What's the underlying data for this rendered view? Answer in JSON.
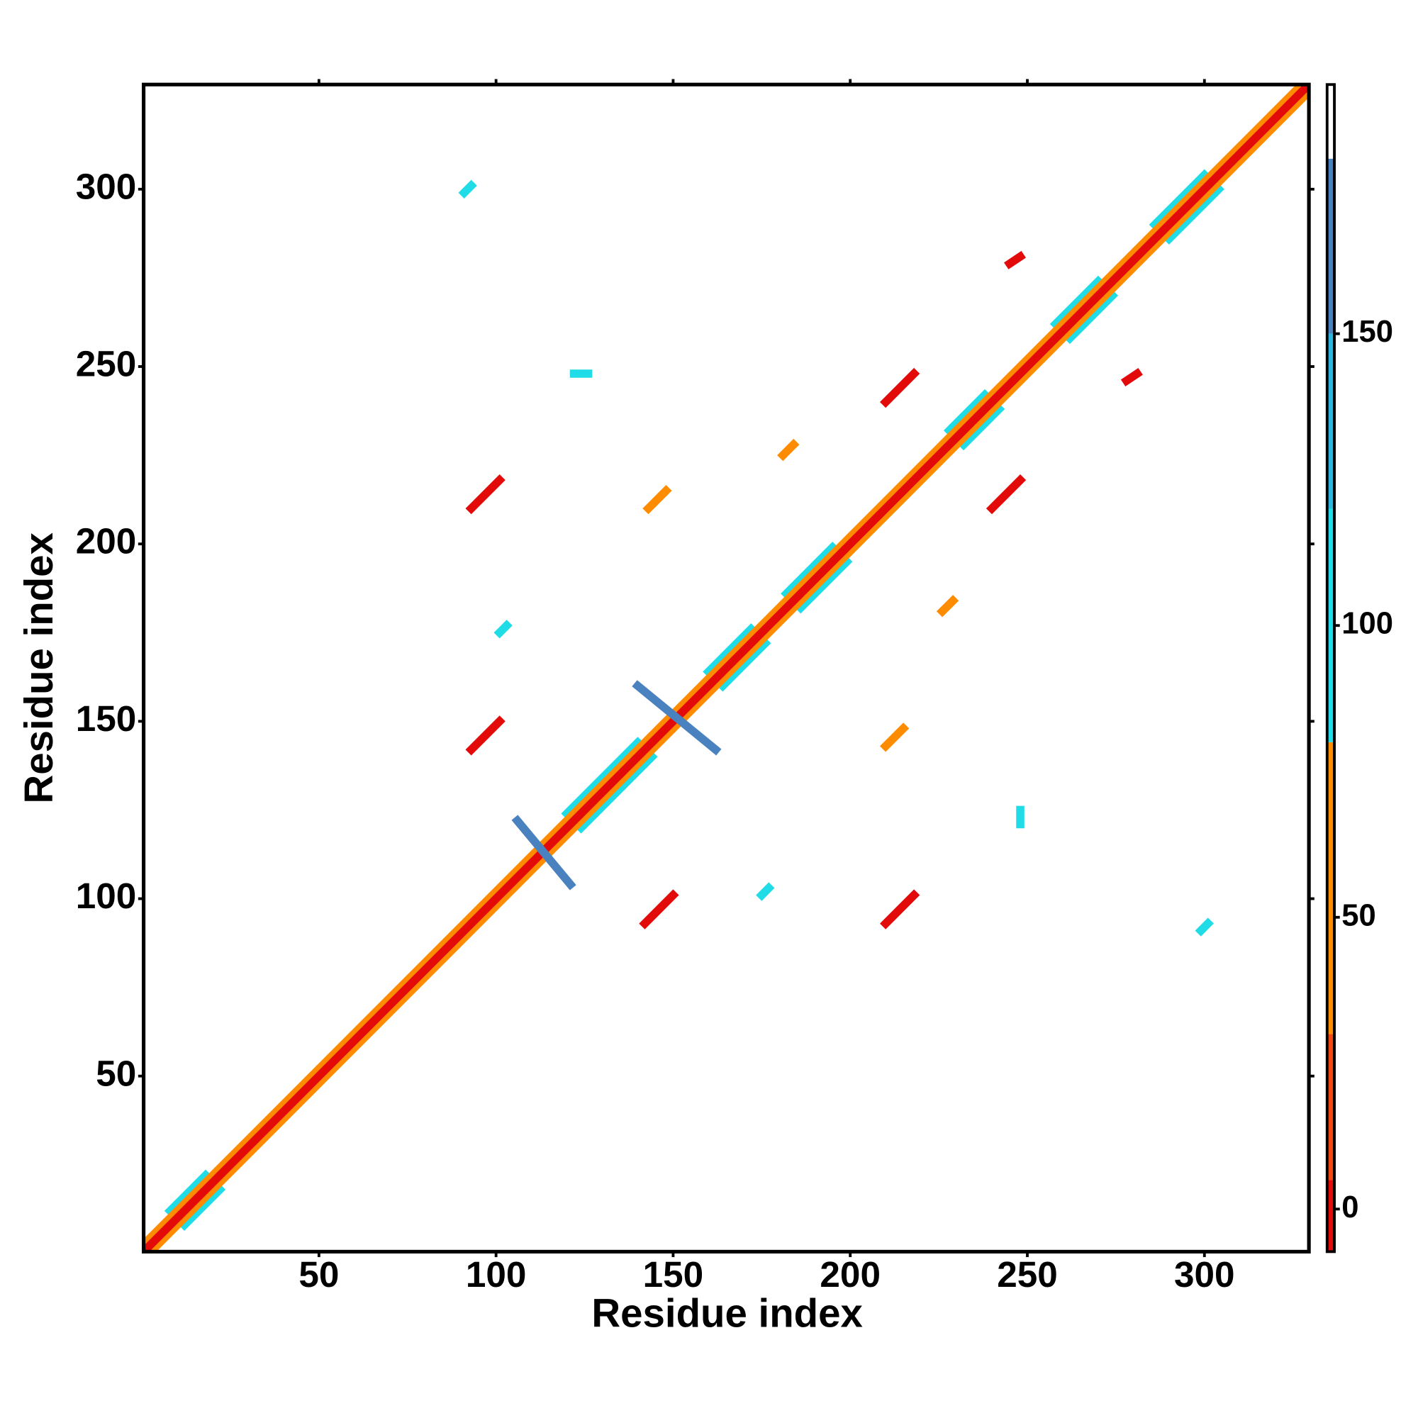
{
  "chart_data": {
    "type": "heatmap",
    "xlabel": "Residue index",
    "ylabel": "Residue index",
    "xlim": [
      0.5,
      329.5
    ],
    "ylim": [
      0.5,
      329.5
    ],
    "xticks": [
      50,
      100,
      150,
      200,
      250,
      300
    ],
    "yticks": [
      50,
      100,
      150,
      200,
      250,
      300
    ],
    "colorbar": {
      "lim": [
        -7.3,
        192.7
      ],
      "ticks": [
        0,
        50,
        100,
        150
      ],
      "bands": [
        {
          "from": -7.3,
          "to": 5,
          "color": "#e30a0a"
        },
        {
          "from": 5,
          "to": 30,
          "color": "#f2470f"
        },
        {
          "from": 30,
          "to": 80,
          "color": "#ff8c00"
        },
        {
          "from": 80,
          "to": 120,
          "color": "#1fdce6"
        },
        {
          "from": 120,
          "to": 150,
          "color": "#2bb6dc"
        },
        {
          "from": 150,
          "to": 180,
          "color": "#4a82c0"
        },
        {
          "from": 180,
          "to": 192.7,
          "color": "#ffffff"
        }
      ]
    },
    "contacts": [
      {
        "x": [
          8,
          18
        ],
        "y": [
          12,
          22
        ],
        "value": 100
      },
      {
        "x": [
          12,
          22
        ],
        "y": [
          8,
          18
        ],
        "value": 100
      },
      {
        "x": [
          120,
          140
        ],
        "y": [
          124,
          144
        ],
        "value": 100
      },
      {
        "x": [
          124,
          144
        ],
        "y": [
          120,
          140
        ],
        "value": 100
      },
      {
        "x": [
          160,
          172
        ],
        "y": [
          164,
          176
        ],
        "value": 100
      },
      {
        "x": [
          164,
          176
        ],
        "y": [
          160,
          172
        ],
        "value": 100
      },
      {
        "x": [
          182,
          195
        ],
        "y": [
          186,
          199
        ],
        "value": 100
      },
      {
        "x": [
          186,
          199
        ],
        "y": [
          182,
          195
        ],
        "value": 100
      },
      {
        "x": [
          228,
          238
        ],
        "y": [
          232,
          242
        ],
        "value": 100
      },
      {
        "x": [
          232,
          242
        ],
        "y": [
          228,
          238
        ],
        "value": 100
      },
      {
        "x": [
          258,
          270
        ],
        "y": [
          262,
          274
        ],
        "value": 100
      },
      {
        "x": [
          262,
          274
        ],
        "y": [
          258,
          270
        ],
        "value": 100
      },
      {
        "x": [
          286,
          300
        ],
        "y": [
          290,
          304
        ],
        "value": 100
      },
      {
        "x": [
          290,
          304
        ],
        "y": [
          286,
          300
        ],
        "value": 100
      },
      {
        "x": [
          1,
          327
        ],
        "y": [
          3,
          329
        ],
        "value": 50
      },
      {
        "x": [
          3,
          329
        ],
        "y": [
          1,
          327
        ],
        "value": 50
      },
      {
        "x": [
          1,
          329
        ],
        "y": [
          1,
          329
        ],
        "value": 0
      },
      {
        "x": [
          142,
          150
        ],
        "y": [
          93,
          101
        ],
        "value": 0
      },
      {
        "x": [
          93,
          101
        ],
        "y": [
          142,
          150
        ],
        "value": 0
      },
      {
        "x": [
          210,
          218
        ],
        "y": [
          93,
          101
        ],
        "value": 0
      },
      {
        "x": [
          93,
          101
        ],
        "y": [
          210,
          218
        ],
        "value": 0
      },
      {
        "x": [
          240,
          248
        ],
        "y": [
          210,
          218
        ],
        "value": 0
      },
      {
        "x": [
          210,
          218
        ],
        "y": [
          240,
          248
        ],
        "value": 0
      },
      {
        "x": [
          226,
          229
        ],
        "y": [
          181,
          184
        ],
        "value": 50
      },
      {
        "x": [
          181,
          184
        ],
        "y": [
          225,
          228
        ],
        "value": 50
      },
      {
        "x": [
          210,
          215
        ],
        "y": [
          143,
          148
        ],
        "value": 40
      },
      {
        "x": [
          143,
          148
        ],
        "y": [
          210,
          215
        ],
        "value": 40
      },
      {
        "x": [
          278,
          281
        ],
        "y": [
          246,
          248
        ],
        "value": 0
      },
      {
        "x": [
          245,
          248
        ],
        "y": [
          279,
          281
        ],
        "value": 0
      },
      {
        "x": [
          106,
          121
        ],
        "y": [
          122,
          104
        ],
        "value": 160
      },
      {
        "x": [
          140,
          162
        ],
        "y": [
          160,
          142
        ],
        "value": 160
      },
      {
        "x": [
          101,
          103
        ],
        "y": [
          175,
          177
        ],
        "value": 100
      },
      {
        "x": [
          175,
          177
        ],
        "y": [
          101,
          103
        ],
        "value": 100
      },
      {
        "x": [
          299,
          301
        ],
        "y": [
          91,
          93
        ],
        "value": 100
      },
      {
        "x": [
          91,
          93
        ],
        "y": [
          299,
          301
        ],
        "value": 100
      },
      {
        "x": [
          122,
          126
        ],
        "y": [
          248,
          248
        ],
        "value": 100
      },
      {
        "x": [
          248,
          248
        ],
        "y": [
          121,
          125
        ],
        "value": 100
      }
    ]
  }
}
